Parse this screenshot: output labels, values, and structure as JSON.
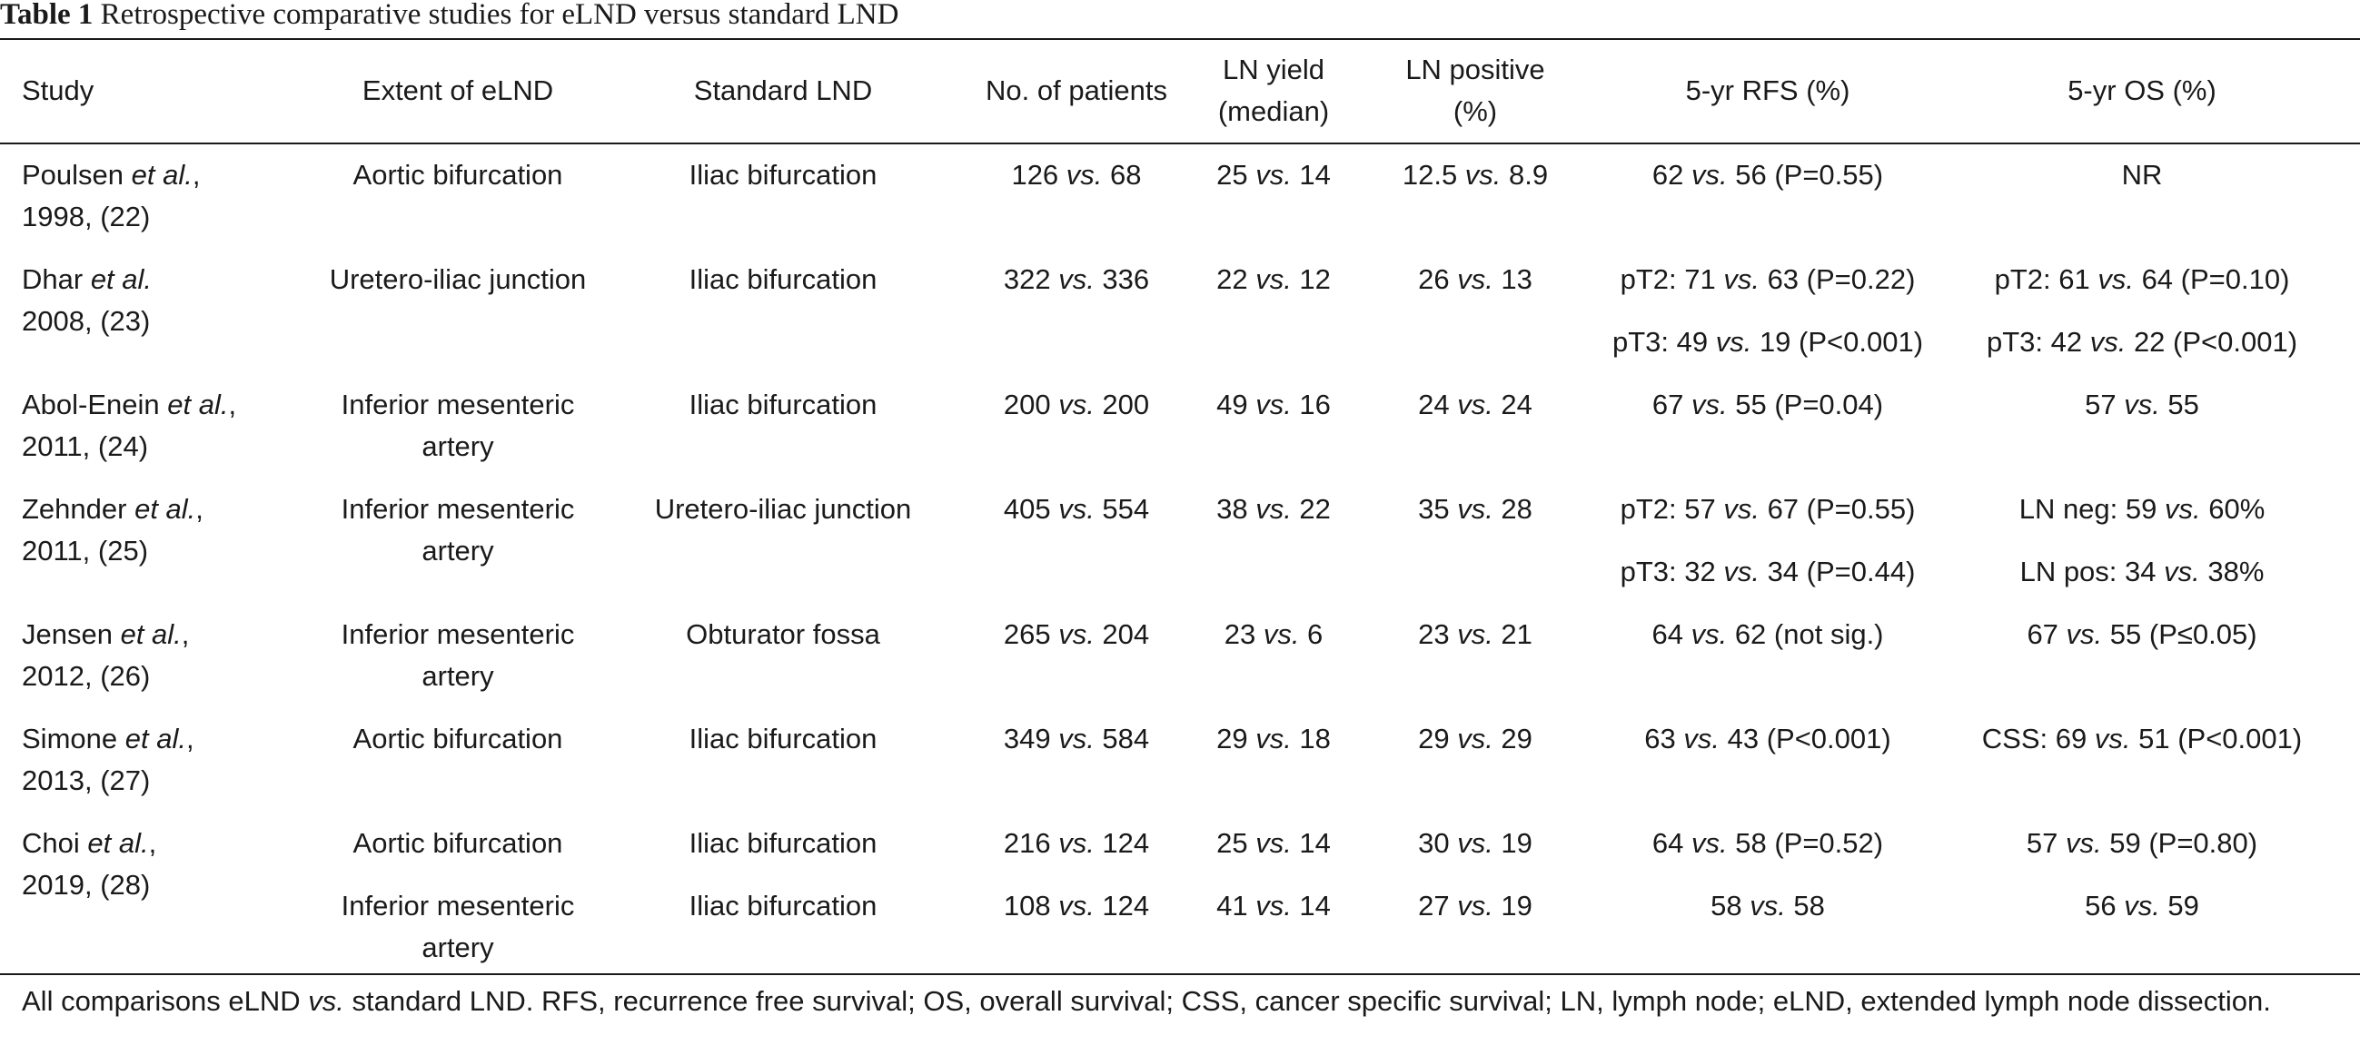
{
  "caption": {
    "label": "Table 1",
    "text": " Retrospective comparative studies for eLND versus standard LND"
  },
  "headers": {
    "study": "Study",
    "extent": "Extent of eLND",
    "standard": "Standard LND",
    "patients": "No. of patients",
    "yield_1": "LN yield",
    "yield_2": "(median)",
    "positive_1": "LN positive",
    "positive_2": "(%)",
    "rfs": "5-yr RFS (%)",
    "os": "5-yr OS (%)"
  },
  "rows": [
    {
      "study_author": "Poulsen ",
      "study_etal": "et al.",
      "study_line1_end": ",",
      "study_line2": "1998, (22)",
      "extent_1": "Aortic bifurcation",
      "extent_2": "",
      "standard": "Iliac bifurcation",
      "patients_a": "126 ",
      "patients_vs": "vs.",
      "patients_b": " 68",
      "yield_a": "25 ",
      "yield_vs": "vs.",
      "yield_b": " 14",
      "pos_a": "12.5 ",
      "pos_vs": "vs.",
      "pos_b": " 8.9",
      "rfs_a": "62 ",
      "rfs_vs": "vs.",
      "rfs_b": " 56 (P=0.55)",
      "os_a": "NR",
      "os_vs": "",
      "os_b": ""
    },
    {
      "study_author": "Dhar ",
      "study_etal": "et al.",
      "study_line1_end": "",
      "study_line2": "2008, (23)",
      "extent_1": "Uretero-iliac junction",
      "extent_2": "",
      "standard": "Iliac bifurcation",
      "patients_a": "322 ",
      "patients_vs": "vs.",
      "patients_b": " 336",
      "yield_a": "22 ",
      "yield_vs": "vs.",
      "yield_b": " 12",
      "pos_a": "26 ",
      "pos_vs": "vs.",
      "pos_b": " 13",
      "rfs_a": "pT2: 71 ",
      "rfs_vs": "vs.",
      "rfs_b": " 63 (P=0.22)",
      "os_a": "pT2: 61 ",
      "os_vs": "vs.",
      "os_b": " 64 (P=0.10)",
      "rfs2_a": "pT3: 49 ",
      "rfs2_vs": "vs.",
      "rfs2_b": " 19 (P<0.001)",
      "os2_a": "pT3: 42 ",
      "os2_vs": "vs.",
      "os2_b": " 22 (P<0.001)"
    },
    {
      "study_author": "Abol-Enein ",
      "study_etal": "et al.",
      "study_line1_end": ",",
      "study_line2": "2011, (24)",
      "extent_1": "Inferior mesenteric",
      "extent_2": "artery",
      "standard": "Iliac bifurcation",
      "patients_a": "200 ",
      "patients_vs": "vs.",
      "patients_b": " 200",
      "yield_a": "49 ",
      "yield_vs": "vs.",
      "yield_b": " 16",
      "pos_a": "24 ",
      "pos_vs": "vs.",
      "pos_b": " 24",
      "rfs_a": "67 ",
      "rfs_vs": "vs.",
      "rfs_b": " 55 (P=0.04)",
      "os_a": "57 ",
      "os_vs": "vs.",
      "os_b": " 55"
    },
    {
      "study_author": "Zehnder ",
      "study_etal": "et al.",
      "study_line1_end": ",",
      "study_line2": "2011, (25)",
      "extent_1": "Inferior mesenteric",
      "extent_2": "artery",
      "standard": "Uretero-iliac junction",
      "patients_a": "405 ",
      "patients_vs": "vs.",
      "patients_b": " 554",
      "yield_a": "38 ",
      "yield_vs": "vs.",
      "yield_b": " 22",
      "pos_a": "35 ",
      "pos_vs": "vs.",
      "pos_b": " 28",
      "rfs_a": "pT2: 57 ",
      "rfs_vs": "vs.",
      "rfs_b": " 67 (P=0.55)",
      "os_a": "LN neg: 59 ",
      "os_vs": "vs.",
      "os_b": " 60%",
      "rfs2_a": "pT3: 32 ",
      "rfs2_vs": "vs.",
      "rfs2_b": " 34 (P=0.44)",
      "os2_a": "LN pos: 34 ",
      "os2_vs": "vs.",
      "os2_b": " 38%"
    },
    {
      "study_author": "Jensen ",
      "study_etal": "et al.",
      "study_line1_end": ",",
      "study_line2": "2012, (26)",
      "extent_1": "Inferior mesenteric",
      "extent_2": "artery",
      "standard": "Obturator fossa",
      "patients_a": "265 ",
      "patients_vs": "vs.",
      "patients_b": " 204",
      "yield_a": "23 ",
      "yield_vs": "vs.",
      "yield_b": " 6",
      "pos_a": "23 ",
      "pos_vs": "vs.",
      "pos_b": " 21",
      "rfs_a": "64 ",
      "rfs_vs": "vs.",
      "rfs_b": " 62 (not sig.)",
      "os_a": "67 ",
      "os_vs": "vs.",
      "os_b": " 55 (P≤0.05)"
    },
    {
      "study_author": "Simone ",
      "study_etal": "et al.",
      "study_line1_end": ",",
      "study_line2": "2013, (27)",
      "extent_1": "Aortic bifurcation",
      "extent_2": "",
      "standard": "Iliac bifurcation",
      "patients_a": "349 ",
      "patients_vs": "vs.",
      "patients_b": " 584",
      "yield_a": "29 ",
      "yield_vs": "vs.",
      "yield_b": " 18",
      "pos_a": "29 ",
      "pos_vs": "vs.",
      "pos_b": " 29",
      "rfs_a": "63 ",
      "rfs_vs": "vs.",
      "rfs_b": " 43 (P<0.001)",
      "os_a": "CSS: 69 ",
      "os_vs": "vs.",
      "os_b": " 51 (P<0.001)"
    },
    {
      "study_author": "Choi ",
      "study_etal": "et al.",
      "study_line1_end": ",",
      "study_line2": "2019, (28)",
      "extent_1": "Aortic bifurcation",
      "extent_2": "",
      "standard": "Iliac bifurcation",
      "patients_a": "216 ",
      "patients_vs": "vs.",
      "patients_b": " 124",
      "yield_a": "25 ",
      "yield_vs": "vs.",
      "yield_b": " 14",
      "pos_a": "30 ",
      "pos_vs": "vs.",
      "pos_b": " 19",
      "rfs_a": "64 ",
      "rfs_vs": "vs.",
      "rfs_b": " 58 (P=0.52)",
      "os_a": "57 ",
      "os_vs": "vs.",
      "os_b": " 59 (P=0.80)"
    },
    {
      "extent_1": "Inferior mesenteric",
      "extent_2": "artery",
      "standard": "Iliac bifurcation",
      "patients_a": "108 ",
      "patients_vs": "vs.",
      "patients_b": " 124",
      "yield_a": "41 ",
      "yield_vs": "vs.",
      "yield_b": " 14",
      "pos_a": "27 ",
      "pos_vs": "vs.",
      "pos_b": " 19",
      "rfs_a": "58 ",
      "rfs_vs": "vs.",
      "rfs_b": " 58",
      "os_a": "56 ",
      "os_vs": "vs.",
      "os_b": " 59"
    }
  ],
  "footnote": {
    "part1": "All comparisons eLND ",
    "vs": "vs.",
    "part2": " standard LND. RFS, recurrence free survival; OS, overall survival; CSS, cancer specific survival; LN, lymph node; eLND, extended lymph node dissection."
  }
}
